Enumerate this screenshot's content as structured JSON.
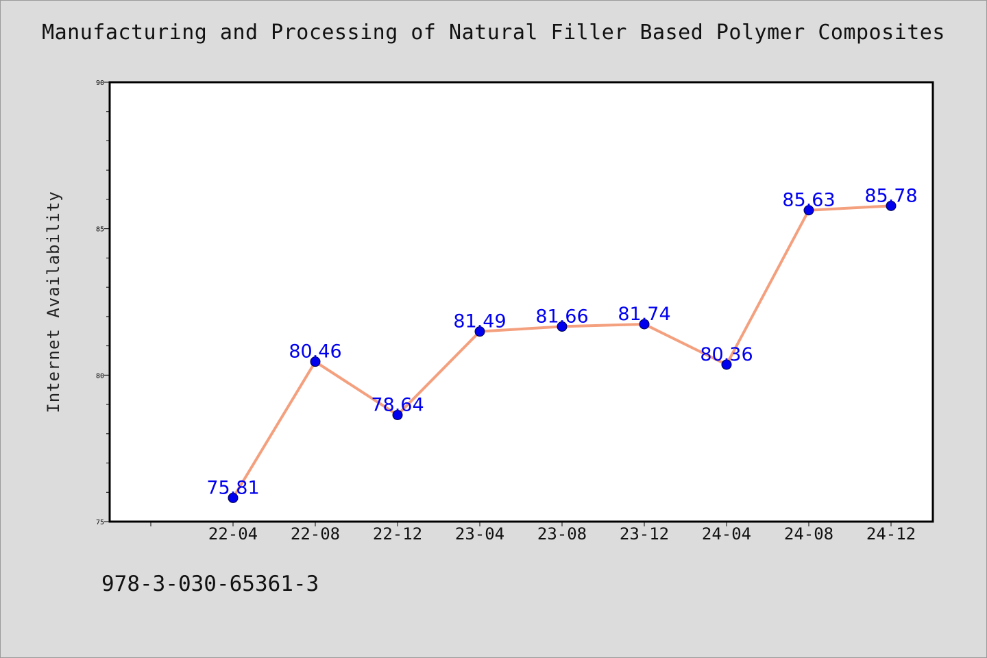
{
  "chart_data": {
    "type": "line",
    "title": "Manufacturing and Processing of Natural Filler Based Polymer Composites",
    "xlabel": "",
    "ylabel": "Internet Availability",
    "categories": [
      "22-04",
      "22-08",
      "22-12",
      "23-04",
      "23-08",
      "23-12",
      "24-04",
      "24-08",
      "24-12"
    ],
    "series": [
      {
        "values": [
          75.81,
          80.46,
          78.64,
          81.49,
          81.66,
          81.74,
          80.36,
          85.63,
          85.78
        ]
      }
    ],
    "data_labels": [
      "75.81",
      "80.46",
      "78.64",
      "81.49",
      "81.66",
      "81.74",
      "80.36",
      "85.63",
      "85.78"
    ],
    "ylim": [
      75,
      90
    ],
    "y_ticks": [
      75,
      80,
      85,
      90
    ],
    "grid": false,
    "line_color": "#f4a07e",
    "marker_color": "#0000ee",
    "label_color": "#0000ee"
  },
  "footnote": "978-3-030-65361-3"
}
